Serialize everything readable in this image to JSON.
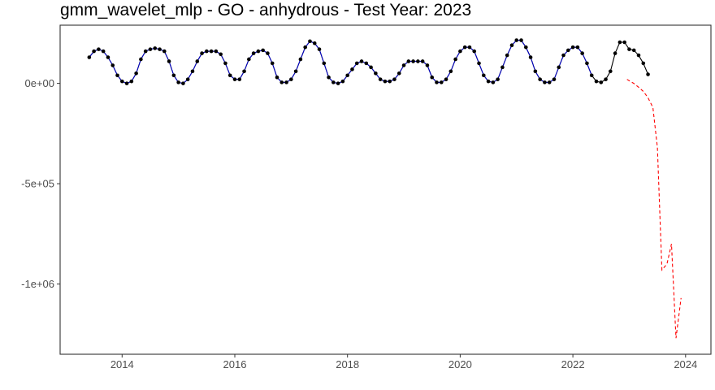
{
  "chart_data": {
    "type": "line",
    "title": "gmm_wavelet_mlp - GO - anhydrous - Test Year: 2023",
    "xlabel": "",
    "ylabel": "",
    "xlim": [
      2012.9,
      2024.45
    ],
    "ylim": [
      -1350000,
      290000
    ],
    "grid": false,
    "x_ticks": [
      {
        "value": 2014,
        "label": "2014"
      },
      {
        "value": 2016,
        "label": "2016"
      },
      {
        "value": 2018,
        "label": "2018"
      },
      {
        "value": 2020,
        "label": "2020"
      },
      {
        "value": 2022,
        "label": "2022"
      },
      {
        "value": 2024,
        "label": "2024"
      }
    ],
    "y_ticks": [
      {
        "value": 0,
        "label": "0e+00"
      },
      {
        "value": -500000,
        "label": "-5e+05"
      },
      {
        "value": -1000000,
        "label": "-1e+06"
      }
    ],
    "series": [
      {
        "role": "actual",
        "color": "#000000",
        "style": "solid-with-points",
        "x_start": 2013.4167,
        "x_step": 0.083333,
        "values": [
          130000,
          160000,
          170000,
          160000,
          130000,
          90000,
          40000,
          10000,
          0,
          10000,
          50000,
          120000,
          160000,
          170000,
          175000,
          170000,
          160000,
          110000,
          40000,
          5000,
          0,
          20000,
          60000,
          110000,
          150000,
          160000,
          160000,
          160000,
          145000,
          100000,
          40000,
          20000,
          20000,
          60000,
          120000,
          150000,
          160000,
          165000,
          150000,
          100000,
          30000,
          5000,
          5000,
          20000,
          60000,
          120000,
          180000,
          210000,
          200000,
          170000,
          100000,
          30000,
          5000,
          0,
          10000,
          40000,
          70000,
          100000,
          110000,
          100000,
          80000,
          50000,
          20000,
          10000,
          10000,
          20000,
          50000,
          90000,
          110000,
          110000,
          110000,
          110000,
          90000,
          30000,
          5000,
          5000,
          20000,
          60000,
          120000,
          160000,
          180000,
          180000,
          160000,
          100000,
          40000,
          10000,
          5000,
          20000,
          80000,
          140000,
          190000,
          215000,
          215000,
          180000,
          130000,
          60000,
          20000,
          5000,
          5000,
          20000,
          80000,
          140000,
          165000,
          180000,
          180000,
          150000,
          100000,
          40000,
          10000,
          5000,
          20000,
          60000,
          150000,
          205000,
          205000,
          170000,
          165000,
          140000,
          100000,
          45000
        ]
      },
      {
        "role": "fitted",
        "color": "#0000cd",
        "style": "solid",
        "x_start": 2013.4167,
        "x_step": 0.083333,
        "values": [
          130000,
          160000,
          170000,
          160000,
          130000,
          90000,
          40000,
          10000,
          0,
          10000,
          50000,
          120000,
          160000,
          170000,
          175000,
          170000,
          160000,
          110000,
          40000,
          5000,
          0,
          20000,
          60000,
          110000,
          150000,
          160000,
          160000,
          160000,
          145000,
          100000,
          40000,
          20000,
          20000,
          60000,
          120000,
          150000,
          160000,
          165000,
          150000,
          100000,
          30000,
          5000,
          5000,
          20000,
          60000,
          120000,
          180000,
          210000,
          200000,
          170000,
          100000,
          30000,
          5000,
          0,
          10000,
          40000,
          70000,
          100000,
          110000,
          100000,
          80000,
          50000,
          20000,
          10000,
          10000,
          20000,
          50000,
          90000,
          110000,
          110000,
          110000,
          110000,
          90000,
          30000,
          5000,
          5000,
          20000,
          60000,
          120000,
          160000,
          180000,
          180000,
          160000,
          100000,
          40000,
          10000,
          5000,
          20000,
          80000,
          140000,
          190000,
          215000,
          215000,
          180000,
          130000,
          60000,
          20000,
          5000,
          5000,
          20000,
          80000,
          140000,
          165000,
          180000,
          180000,
          150000,
          100000,
          40000
        ]
      },
      {
        "role": "forecast",
        "color": "#ff0000",
        "style": "dashed",
        "points": [
          [
            2022.96,
            20000
          ],
          [
            2023.08,
            0
          ],
          [
            2023.17,
            -20000
          ],
          [
            2023.25,
            -40000
          ],
          [
            2023.33,
            -70000
          ],
          [
            2023.42,
            -120000
          ],
          [
            2023.5,
            -320000
          ],
          [
            2023.58,
            -930000
          ],
          [
            2023.67,
            -900000
          ],
          [
            2023.75,
            -800000
          ],
          [
            2023.83,
            -1270000
          ],
          [
            2023.92,
            -1070000
          ]
        ]
      }
    ]
  }
}
